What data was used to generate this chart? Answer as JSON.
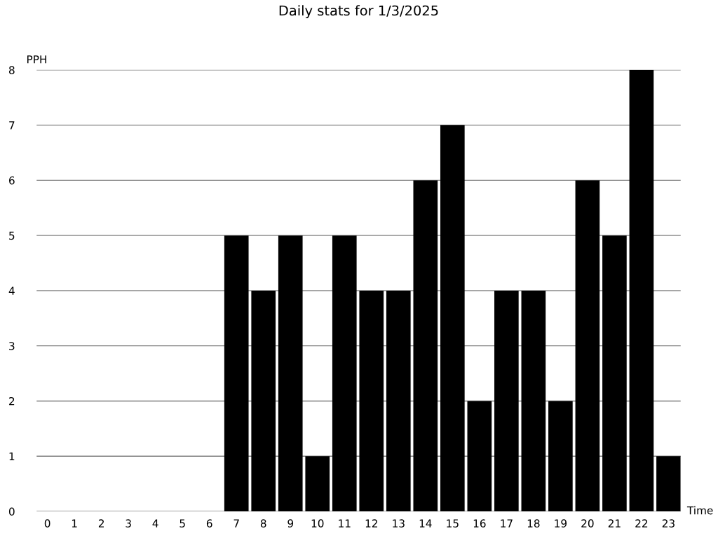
{
  "chart_data": {
    "type": "bar",
    "title": "Daily stats for 1/3/2025",
    "xlabel": "Time",
    "ylabel": "PPH",
    "categories": [
      "0",
      "1",
      "2",
      "3",
      "4",
      "5",
      "6",
      "7",
      "8",
      "9",
      "10",
      "11",
      "12",
      "13",
      "14",
      "15",
      "16",
      "17",
      "18",
      "19",
      "20",
      "21",
      "22",
      "23"
    ],
    "values": [
      0,
      0,
      0,
      0,
      0,
      0,
      0,
      5,
      4,
      5,
      1,
      5,
      4,
      4,
      6,
      7,
      2,
      4,
      4,
      2,
      6,
      5,
      8,
      1
    ],
    "color": "#000000",
    "ylim": [
      0,
      8
    ],
    "yticks": [
      0,
      1,
      2,
      3,
      4,
      5,
      6,
      7,
      8
    ],
    "grid": "y",
    "legend": false
  }
}
